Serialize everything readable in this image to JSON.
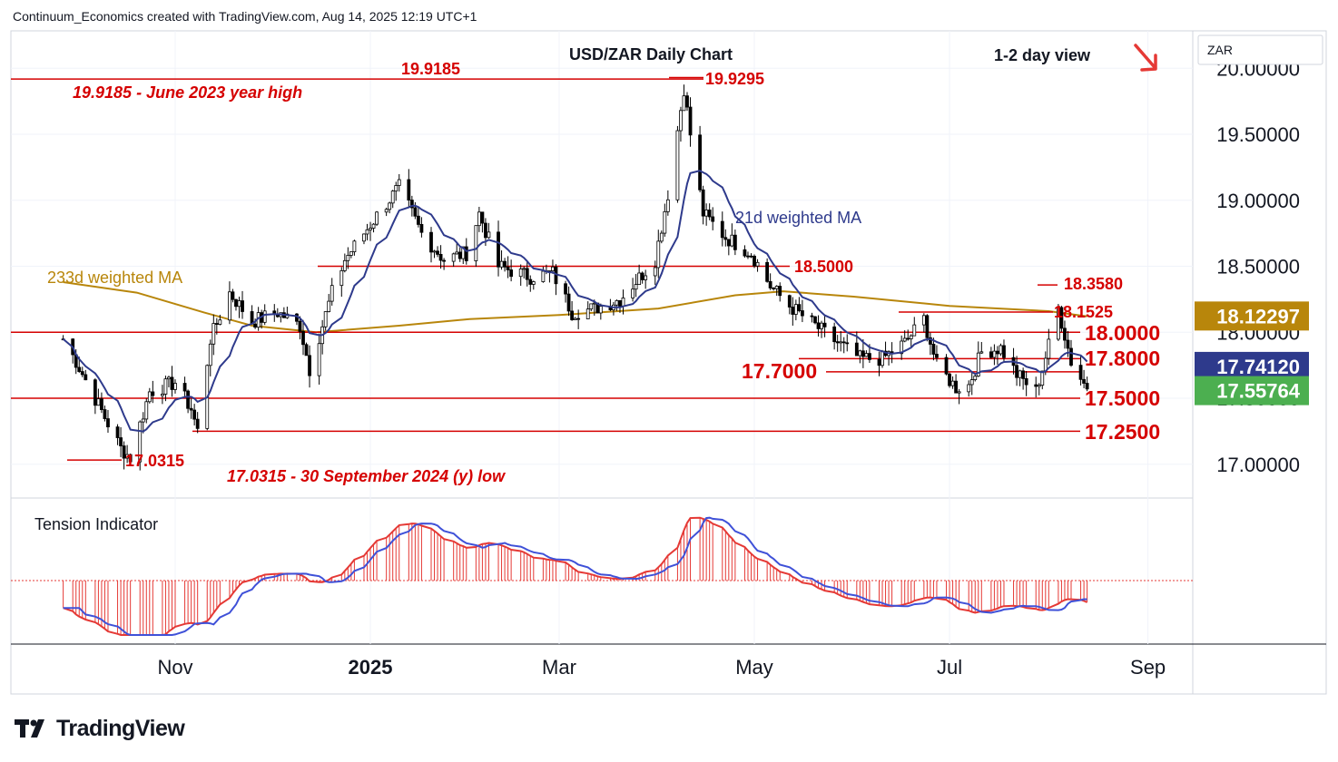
{
  "header": "Continuum_Economics created with TradingView.com, Aug 14, 2025 12:19 UTC+1",
  "chart_title": "USD/ZAR Daily Chart",
  "view": "1-2 day view",
  "currency_label": "ZAR",
  "brand": "TradingView",
  "icons": {
    "arrow": "arrow-down-right-icon",
    "logo": "tradingview-logo-icon"
  },
  "colors": {
    "level": "#d50000",
    "candle": "#000000",
    "ma21": "#2e3a8c",
    "ma233": "#b8860b",
    "tension": "#e53935",
    "tension_line": "#3f51d8"
  },
  "chart_data": {
    "type": "candlestick",
    "title": "USD/ZAR Daily Chart",
    "y_ticks": [
      "17.00000",
      "17.50000",
      "18.00000",
      "18.50000",
      "19.00000",
      "19.50000",
      "20.00000"
    ],
    "x_ticks": [
      "Nov",
      "2025",
      "Mar",
      "May",
      "Jul",
      "Sep"
    ],
    "ylim": [
      16.75,
      20.1
    ],
    "levels": [
      {
        "value": 19.9185,
        "label": "19.9185"
      },
      {
        "value": 18.5,
        "label": "18.5000"
      },
      {
        "value": 18.1525,
        "label": "18.1525"
      },
      {
        "value": 18.0,
        "label": "18.0000"
      },
      {
        "value": 17.8,
        "label": "17.8000"
      },
      {
        "value": 17.7,
        "label": "17.7000"
      },
      {
        "value": 17.5,
        "label": "17.5000"
      },
      {
        "value": 17.25,
        "label": "17.2500"
      }
    ],
    "annotations": [
      {
        "text": "19.9185 - June 2023 year high"
      },
      {
        "text": "19.9295",
        "value": 19.9295
      },
      {
        "text": "18.3580",
        "value": 18.358
      },
      {
        "text": "17.0315",
        "value": 17.0315
      },
      {
        "text": "17.0315 - 30 September 2024 (y) low"
      }
    ],
    "series": [
      {
        "name": "21d weighted MA"
      },
      {
        "name": "233d weighted MA"
      }
    ],
    "price_tags": [
      {
        "value": "18.12297",
        "color": "#b8860b"
      },
      {
        "value": "17.74120",
        "color": "#2e3a8c"
      },
      {
        "value": "17.55764",
        "color": "#4caf50"
      }
    ],
    "price_path": [
      [
        "Sep 27",
        17.95
      ],
      [
        "Oct 1",
        17.78
      ],
      [
        "Oct 8",
        17.45
      ],
      [
        "Oct 15",
        17.12
      ],
      [
        "Oct 18",
        17.05
      ],
      [
        "Oct 24",
        17.55
      ],
      [
        "Nov 1",
        17.62
      ],
      [
        "Nov 6",
        17.42
      ],
      [
        "Nov 8",
        17.25
      ],
      [
        "Nov 12",
        17.95
      ],
      [
        "Nov 18",
        18.3
      ],
      [
        "Nov 25",
        18.08
      ],
      [
        "Dec 3",
        18.15
      ],
      [
        "Dec 10",
        18.05
      ],
      [
        "Dec 13",
        17.72
      ],
      [
        "Dec 20",
        18.3
      ],
      [
        "Dec 24",
        18.55
      ],
      [
        "Jan 2",
        18.85
      ],
      [
        "Jan 10",
        19.1
      ],
      [
        "Jan 17",
        18.75
      ],
      [
        "Jan 24",
        18.55
      ],
      [
        "Jan 31",
        18.6
      ],
      [
        "Feb 4",
        18.9
      ],
      [
        "Feb 10",
        18.5
      ],
      [
        "Feb 20",
        18.42
      ],
      [
        "Feb 27",
        18.45
      ],
      [
        "Mar 5",
        18.15
      ],
      [
        "Mar 12",
        18.18
      ],
      [
        "Mar 20",
        18.25
      ],
      [
        "Mar 31",
        18.55
      ],
      [
        "Apr 4",
        19.05
      ],
      [
        "Apr 9",
        19.85
      ],
      [
        "Apr 11",
        19.5
      ],
      [
        "Apr 15",
        18.9
      ],
      [
        "Apr 22",
        18.72
      ],
      [
        "Apr 30",
        18.6
      ],
      [
        "May 6",
        18.35
      ],
      [
        "May 12",
        18.2
      ],
      [
        "May 20",
        18.05
      ],
      [
        "May 27",
        17.92
      ],
      [
        "Jun 3",
        17.8
      ],
      [
        "Jun 10",
        17.8
      ],
      [
        "Jun 17",
        17.92
      ],
      [
        "Jun 23",
        18.1
      ],
      [
        "Jun 27",
        17.75
      ],
      [
        "Jul 3",
        17.58
      ],
      [
        "Jul 7",
        17.6
      ],
      [
        "Jul 11",
        17.85
      ],
      [
        "Jul 17",
        17.88
      ],
      [
        "Jul 22",
        17.68
      ],
      [
        "Jul 28",
        17.55
      ],
      [
        "Aug 1",
        17.9
      ],
      [
        "Aug 4",
        18.18
      ],
      [
        "Aug 6",
        17.98
      ],
      [
        "Aug 8",
        17.78
      ],
      [
        "Aug 13",
        17.57
      ]
    ]
  }
}
